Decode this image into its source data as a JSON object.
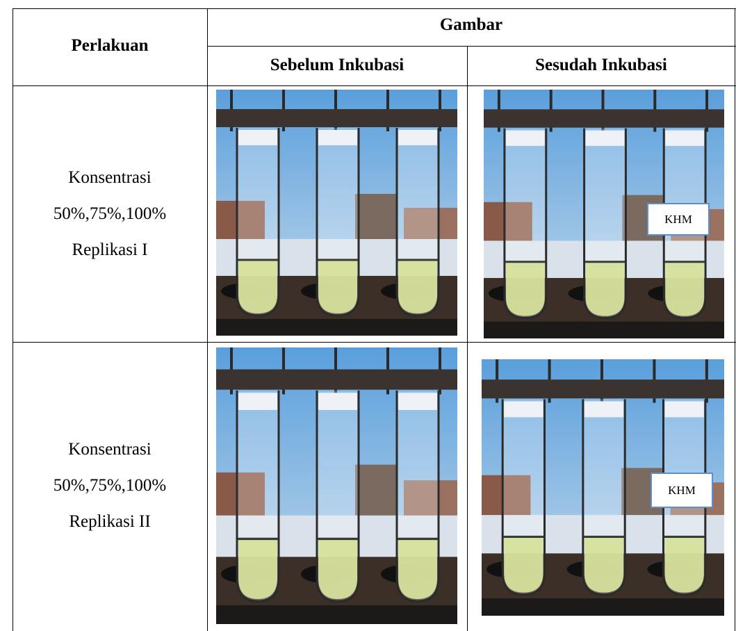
{
  "table": {
    "header": {
      "perlakuan": "Perlakuan",
      "gambar": "Gambar",
      "sebelum": "Sebelum Inkubasi",
      "sesudah": "Sesudah Inkubasi"
    },
    "rows": [
      {
        "perlakuan": [
          "Konsentrasi",
          "50%,75%,100%",
          "Replikasi I"
        ],
        "sesudah_label": "KHM"
      },
      {
        "perlakuan": [
          "Konsentrasi",
          "50%,75%,100%",
          "Replikasi II"
        ],
        "sesudah_label": "KHM"
      }
    ]
  }
}
